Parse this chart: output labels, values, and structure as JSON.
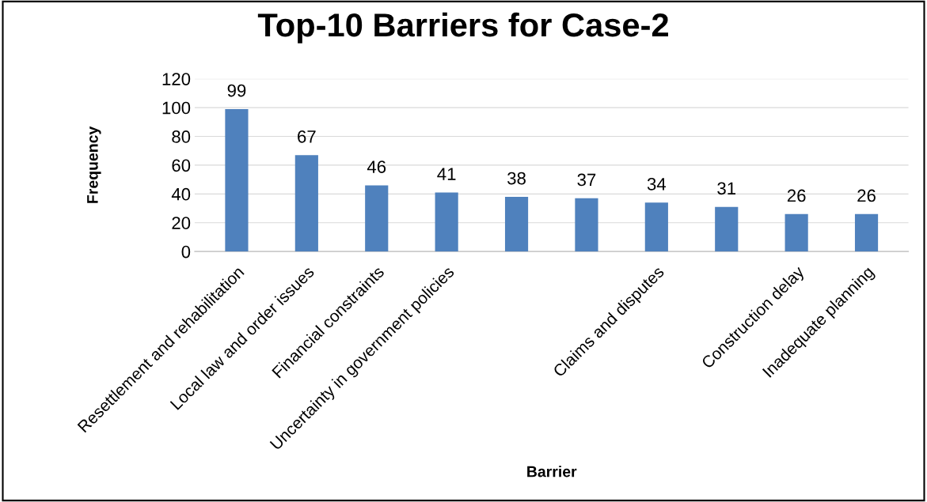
{
  "chart_data": {
    "type": "bar",
    "title": "Top-10 Barriers for Case-2",
    "xlabel": "Barrier",
    "ylabel": "Frequency",
    "categories": [
      "Resettlement and rehabilitation",
      "Local law and order issues",
      "Financial constraints",
      "Uncertainty in government policies",
      null,
      null,
      "Claims and disputes",
      null,
      "Construction delay",
      "Inadequate planning"
    ],
    "values": [
      99,
      67,
      46,
      41,
      38,
      37,
      34,
      31,
      26,
      26
    ],
    "color": "#4f81bd",
    "ylim": [
      0,
      120
    ],
    "yticks": [
      0,
      20,
      40,
      60,
      80,
      100,
      120
    ],
    "grid": "y",
    "data_labels": true
  }
}
